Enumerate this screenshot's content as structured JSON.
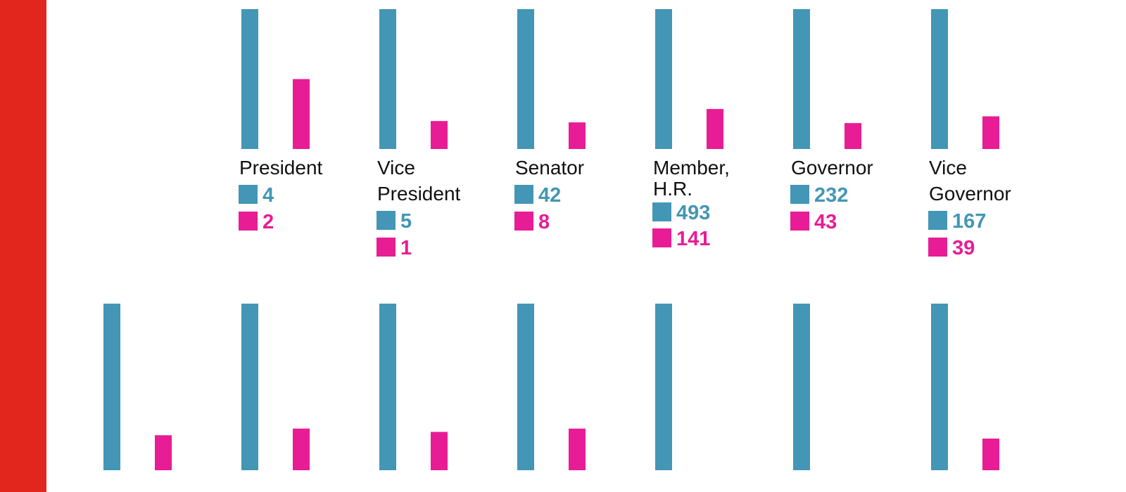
{
  "colors": {
    "accent": "#e2261d",
    "men": "#4396b5",
    "women": "#e81c95",
    "text": "#111111"
  },
  "chart_data": [
    {
      "type": "bar",
      "label_lines": [
        "President"
      ],
      "categories": [
        "blue",
        "pink"
      ],
      "values": [
        4,
        2
      ],
      "row": 0,
      "col": 1
    },
    {
      "type": "bar",
      "label_lines": [
        "Vice",
        "President"
      ],
      "categories": [
        "blue",
        "pink"
      ],
      "values": [
        5,
        1
      ],
      "row": 0,
      "col": 2
    },
    {
      "type": "bar",
      "label_lines": [
        "Senator"
      ],
      "categories": [
        "blue",
        "pink"
      ],
      "values": [
        42,
        8
      ],
      "row": 0,
      "col": 3
    },
    {
      "type": "bar",
      "label_lines": [
        "Member,",
        "H.R."
      ],
      "categories": [
        "blue",
        "pink"
      ],
      "values": [
        493,
        141
      ],
      "row": 0,
      "col": 4
    },
    {
      "type": "bar",
      "label_lines": [
        "Governor"
      ],
      "categories": [
        "blue",
        "pink"
      ],
      "values": [
        232,
        43
      ],
      "row": 0,
      "col": 5
    },
    {
      "type": "bar",
      "label_lines": [
        "Vice",
        "Governor"
      ],
      "categories": [
        "blue",
        "pink"
      ],
      "values": [
        167,
        39
      ],
      "row": 0,
      "col": 6
    },
    {
      "type": "bar",
      "label_lines": [],
      "categories": [
        "blue",
        "pink"
      ],
      "values": [
        null,
        null
      ],
      "ratio": 0.21,
      "row": 1,
      "col": 0
    },
    {
      "type": "bar",
      "label_lines": [],
      "categories": [
        "blue",
        "pink"
      ],
      "values": [
        null,
        null
      ],
      "ratio": 0.25,
      "row": 1,
      "col": 1
    },
    {
      "type": "bar",
      "label_lines": [],
      "categories": [
        "blue",
        "pink"
      ],
      "values": [
        null,
        null
      ],
      "ratio": 0.23,
      "row": 1,
      "col": 2
    },
    {
      "type": "bar",
      "label_lines": [],
      "categories": [
        "blue",
        "pink"
      ],
      "values": [
        null,
        null
      ],
      "ratio": 0.25,
      "row": 1,
      "col": 3
    },
    {
      "type": "bar",
      "label_lines": [],
      "categories": [
        "blue",
        "pink"
      ],
      "values": [
        null,
        0
      ],
      "ratio": 0,
      "row": 1,
      "col": 4
    },
    {
      "type": "bar",
      "label_lines": [],
      "categories": [
        "blue",
        "pink"
      ],
      "values": [
        null,
        0
      ],
      "ratio": 0,
      "row": 1,
      "col": 5
    },
    {
      "type": "bar",
      "label_lines": [],
      "categories": [
        "blue",
        "pink"
      ],
      "values": [
        null,
        null
      ],
      "ratio": 0.19,
      "row": 1,
      "col": 6
    }
  ]
}
